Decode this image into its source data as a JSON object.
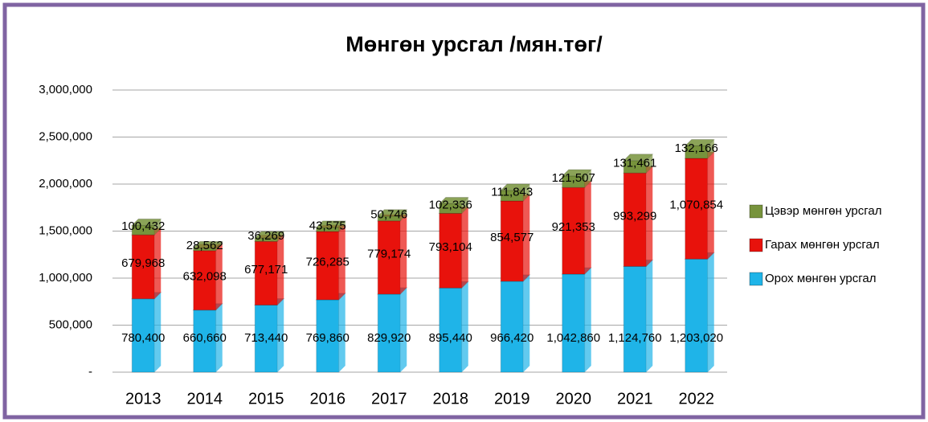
{
  "chart_data": {
    "type": "stacked_bar",
    "title": "Мөнгөн урсгал /мян.төг/",
    "categories": [
      "2013",
      "2014",
      "2015",
      "2016",
      "2017",
      "2018",
      "2019",
      "2020",
      "2021",
      "2022"
    ],
    "series": [
      {
        "name": "Орох мөнгөн урсгал",
        "color": "#1fb4e8",
        "values": [
          780400,
          660660,
          713440,
          769860,
          829920,
          895440,
          966420,
          1042860,
          1124760,
          1203020
        ],
        "value_labels": [
          "780,400",
          "660,660",
          "713,440",
          "769,860",
          "829,920",
          "895,440",
          "966,420",
          "1,042,860",
          "1,124,760",
          "1,203,020"
        ]
      },
      {
        "name": "Гарах мөнгөн урсгал",
        "color": "#e8120c",
        "values": [
          679968,
          632098,
          677171,
          726285,
          779174,
          793104,
          854577,
          921353,
          993299,
          1070854
        ],
        "value_labels": [
          "679,968",
          "632,098",
          "677,171",
          "726,285",
          "779,174",
          "793,104",
          "854,577",
          "921,353",
          "993,299",
          "1,070,854"
        ]
      },
      {
        "name": "Цэвэр мөнгөн урсгал",
        "color": "#77933c",
        "values": [
          100432,
          28562,
          36269,
          43575,
          50746,
          102336,
          111843,
          121507,
          131461,
          132166
        ],
        "value_labels": [
          "100,432",
          "28,562",
          "36,269",
          "43,575",
          "50,746",
          "102,336",
          "111,843",
          "121,507",
          "131,461",
          "132,166"
        ]
      }
    ],
    "ylim": [
      0,
      3000000
    ],
    "yticks": [
      {
        "value": 0,
        "label": "-"
      },
      {
        "value": 500000,
        "label": "500,000"
      },
      {
        "value": 1000000,
        "label": "1,000,000"
      },
      {
        "value": 1500000,
        "label": "1,500,000"
      },
      {
        "value": 2000000,
        "label": "2,000,000"
      },
      {
        "value": 2500000,
        "label": "2,500,000"
      },
      {
        "value": 3000000,
        "label": "3,000,000"
      }
    ],
    "grid": true,
    "legend": "right"
  }
}
